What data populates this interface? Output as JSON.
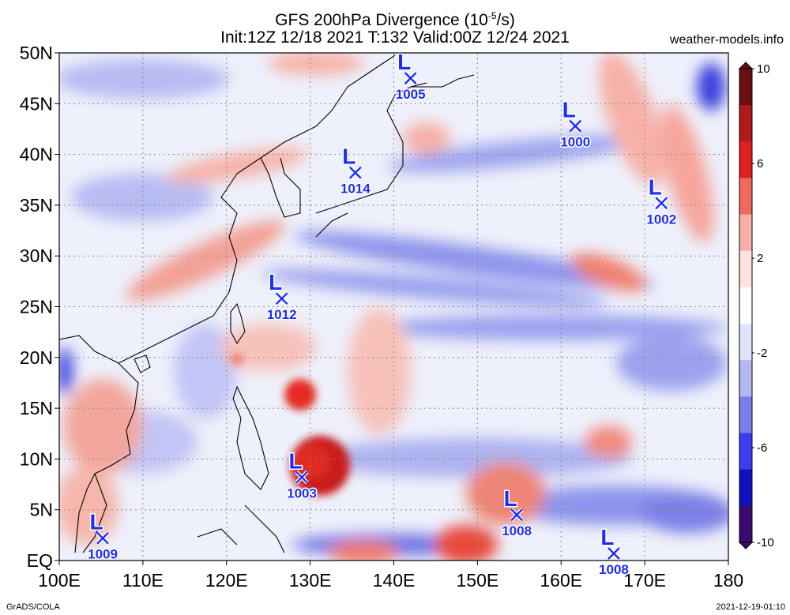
{
  "title_line1": "GFS 200hPa Divergence (10",
  "title_exp": "-5",
  "title_unit": "/s)",
  "title_line2": "Init:12Z 12/18 2021 T:132 Valid:00Z 12/24 2021",
  "site": "weather-models.info",
  "footer_left": "GrADS/COLA",
  "footer_right": "2021-12-19-01:10",
  "lat_labels": [
    "50N",
    "45N",
    "40N",
    "35N",
    "30N",
    "25N",
    "20N",
    "15N",
    "10N",
    "5N",
    "EQ"
  ],
  "lon_labels": [
    "100E",
    "110E",
    "120E",
    "130E",
    "140E",
    "150E",
    "160E",
    "170E",
    "180"
  ],
  "colorbar": {
    "labels": [
      "10",
      "6",
      "2",
      "-2",
      "-6",
      "-10"
    ],
    "colors": [
      "#6a0f14",
      "#b01a1a",
      "#e0201c",
      "#f06a5c",
      "#f7b0a8",
      "#fde3e0",
      "#ffffff",
      "#e2e4fb",
      "#b4b8f2",
      "#7a7ee8",
      "#3c3cf0",
      "#1010c0",
      "#3a0a6e"
    ]
  },
  "lows": [
    {
      "value": "1005",
      "lon": 142.0,
      "lat": 47.5
    },
    {
      "value": "1000",
      "lon": 161.7,
      "lat": 42.8
    },
    {
      "value": "1014",
      "lon": 135.4,
      "lat": 38.2
    },
    {
      "value": "1002",
      "lon": 172.0,
      "lat": 35.2
    },
    {
      "value": "1012",
      "lon": 126.6,
      "lat": 25.8
    },
    {
      "value": "1003",
      "lon": 129.0,
      "lat": 8.2
    },
    {
      "value": "1008",
      "lon": 154.7,
      "lat": 4.5
    },
    {
      "value": "1009",
      "lon": 105.2,
      "lat": 2.2
    },
    {
      "value": "1008",
      "lon": 166.3,
      "lat": 0.7
    }
  ],
  "map": {
    "lon_min": 100,
    "lon_max": 180,
    "lat_min": 0,
    "lat_max": 50
  }
}
